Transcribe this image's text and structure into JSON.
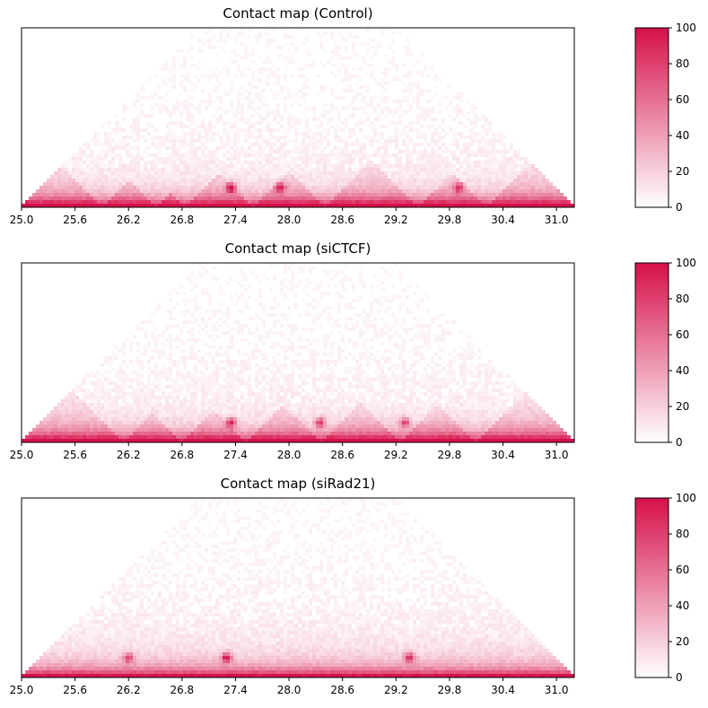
{
  "colors": {
    "low": "#ffffff",
    "high": "#d6104a",
    "axis": "#000000"
  },
  "chart_data": [
    {
      "type": "heatmap",
      "title": "Contact map (Control)",
      "xlabel": "",
      "ylabel": "",
      "x_ticks": [
        "25.0",
        "25.6",
        "26.2",
        "26.8",
        "27.4",
        "28.0",
        "28.6",
        "29.2",
        "29.8",
        "30.4",
        "31.0"
      ],
      "xlim": [
        25.0,
        31.2
      ],
      "colorbar": {
        "ticks": [
          "0",
          "20",
          "40",
          "60",
          "80",
          "100"
        ],
        "range": [
          0,
          100
        ]
      },
      "tad_boundaries": [
        25.0,
        25.9,
        26.5,
        26.85,
        27.6,
        28.4,
        29.45,
        30.2,
        31.2
      ],
      "hotspots": [
        {
          "x": 27.35,
          "value": 80
        },
        {
          "x": 27.9,
          "value": 70
        },
        {
          "x": 29.9,
          "value": 60
        }
      ]
    },
    {
      "type": "heatmap",
      "title": "Contact map (siCTCF)",
      "xlabel": "",
      "ylabel": "",
      "x_ticks": [
        "25.0",
        "25.6",
        "26.2",
        "26.8",
        "27.4",
        "28.0",
        "28.6",
        "29.2",
        "29.8",
        "30.4",
        "31.0"
      ],
      "xlim": [
        25.0,
        31.2
      ],
      "colorbar": {
        "ticks": [
          "0",
          "20",
          "40",
          "60",
          "80",
          "100"
        ],
        "range": [
          0,
          100
        ]
      },
      "tad_boundaries": [
        25.0,
        26.15,
        26.8,
        27.5,
        28.35,
        29.25,
        30.1,
        31.2
      ],
      "hotspots": [
        {
          "x": 27.35,
          "value": 75
        },
        {
          "x": 28.35,
          "value": 65
        },
        {
          "x": 29.3,
          "value": 60
        }
      ]
    },
    {
      "type": "heatmap",
      "title": "Contact map (siRad21)",
      "xlabel": "",
      "ylabel": "",
      "x_ticks": [
        "25.0",
        "25.6",
        "26.2",
        "26.8",
        "27.4",
        "28.0",
        "28.6",
        "29.2",
        "29.8",
        "30.4",
        "31.0"
      ],
      "xlim": [
        25.0,
        31.2
      ],
      "colorbar": {
        "ticks": [
          "0",
          "20",
          "40",
          "60",
          "80",
          "100"
        ],
        "range": [
          0,
          100
        ]
      },
      "tad_boundaries": [
        25.0,
        31.2
      ],
      "hotspots": [
        {
          "x": 27.3,
          "value": 80
        },
        {
          "x": 29.35,
          "value": 70
        },
        {
          "x": 26.2,
          "value": 60
        }
      ]
    }
  ]
}
